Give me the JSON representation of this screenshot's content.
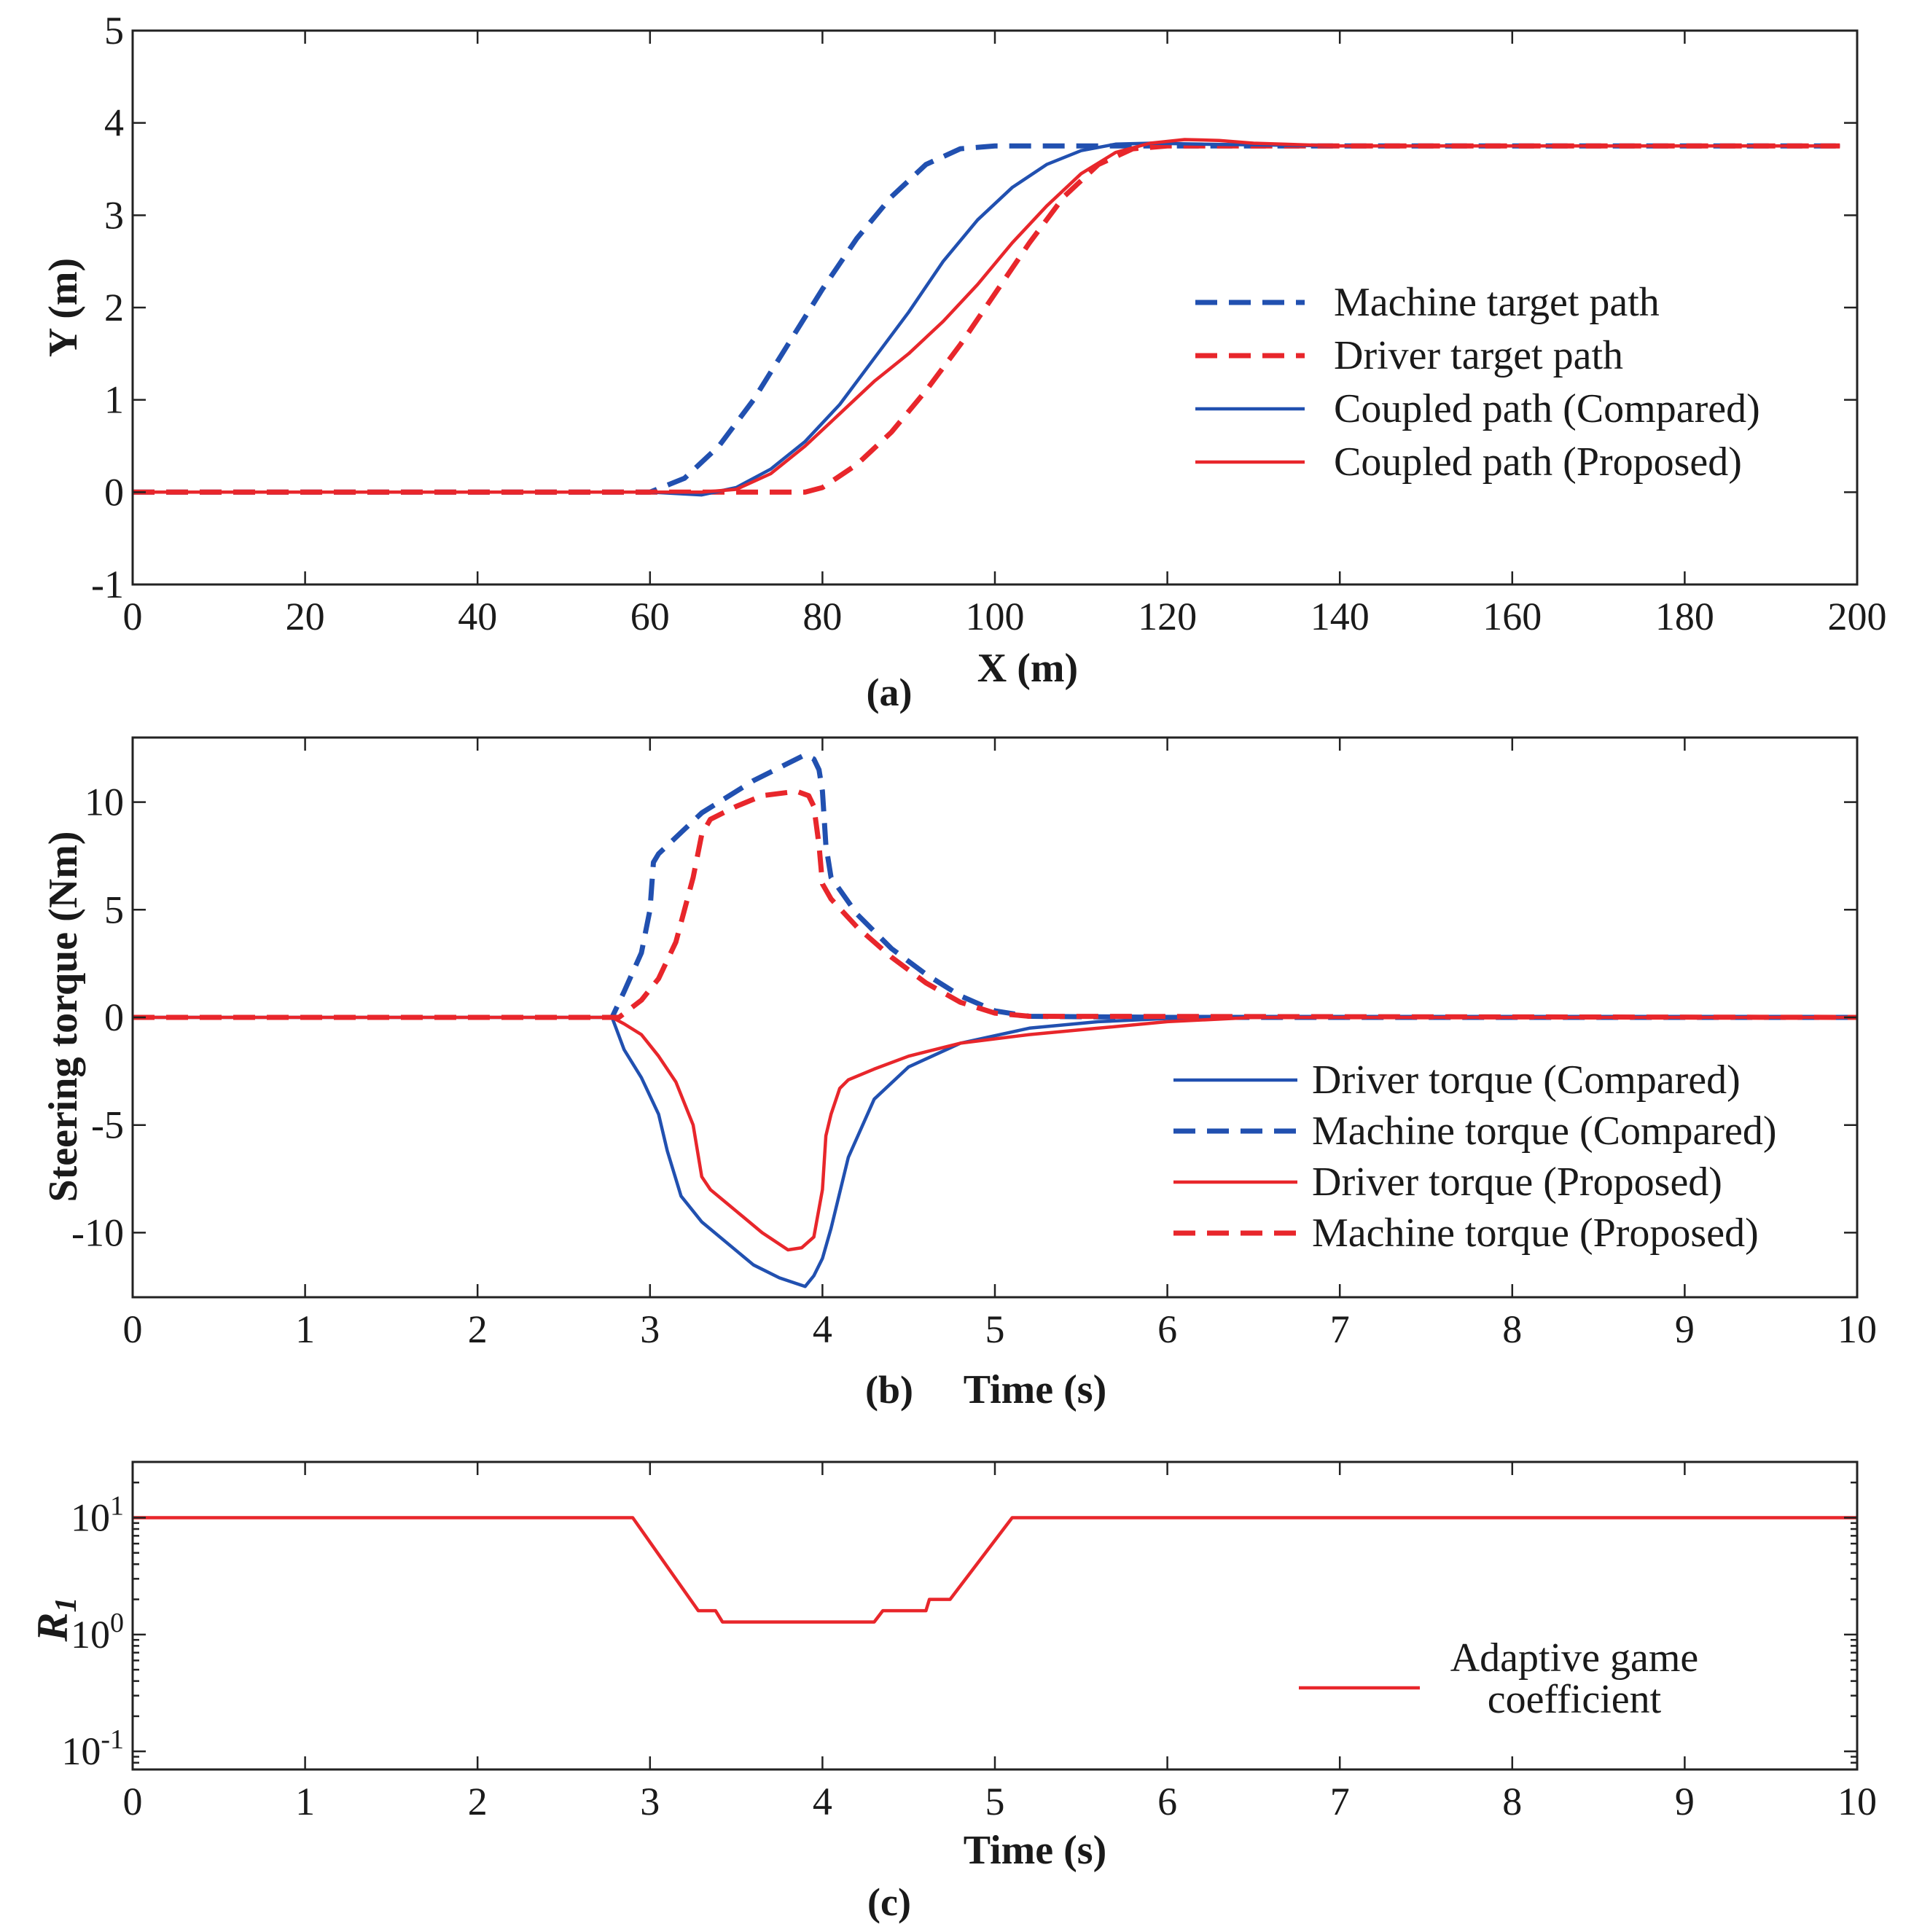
{
  "chart_data": [
    {
      "type": "line",
      "panel_label": "(a)",
      "xlabel": "X (m)",
      "ylabel": "Y (m)",
      "xlim": [
        0,
        200
      ],
      "ylim": [
        -1,
        5
      ],
      "xticks": [
        "0",
        "20",
        "40",
        "60",
        "80",
        "100",
        "120",
        "140",
        "160",
        "180",
        "200"
      ],
      "yticks": [
        "-1",
        "0",
        "1",
        "2",
        "3",
        "4",
        "5"
      ],
      "legend_position": "right",
      "series": [
        {
          "name": "Machine target path",
          "color": "#2150b0",
          "dash": true,
          "x": [
            0,
            60,
            64,
            68,
            72,
            76,
            80,
            84,
            88,
            92,
            96,
            100,
            120,
            198
          ],
          "y": [
            0,
            0,
            0.15,
            0.5,
            1.0,
            1.6,
            2.2,
            2.75,
            3.2,
            3.55,
            3.72,
            3.75,
            3.75,
            3.75
          ]
        },
        {
          "name": "Driver target path",
          "color": "#e8262b",
          "dash": true,
          "x": [
            0,
            78,
            80,
            84,
            88,
            92,
            96,
            100,
            104,
            108,
            112,
            116,
            120,
            198
          ],
          "y": [
            0,
            0,
            0.05,
            0.3,
            0.65,
            1.1,
            1.6,
            2.15,
            2.7,
            3.2,
            3.55,
            3.72,
            3.75,
            3.75
          ]
        },
        {
          "name": "Coupled path (Compared)",
          "color": "#2150b0",
          "dash": false,
          "x": [
            0,
            60,
            66,
            70,
            74,
            78,
            82,
            86,
            90,
            94,
            98,
            102,
            106,
            110,
            114,
            118,
            124,
            140,
            198
          ],
          "y": [
            0,
            0,
            -0.03,
            0.05,
            0.25,
            0.55,
            0.95,
            1.45,
            1.95,
            2.5,
            2.95,
            3.3,
            3.55,
            3.7,
            3.77,
            3.78,
            3.77,
            3.75,
            3.75
          ]
        },
        {
          "name": "Coupled path (Proposed)",
          "color": "#e8262b",
          "dash": false,
          "x": [
            0,
            66,
            70,
            74,
            78,
            82,
            86,
            90,
            94,
            98,
            102,
            106,
            110,
            114,
            118,
            122,
            126,
            130,
            140,
            198
          ],
          "y": [
            0,
            0,
            0.03,
            0.2,
            0.5,
            0.85,
            1.2,
            1.5,
            1.85,
            2.25,
            2.7,
            3.1,
            3.45,
            3.68,
            3.78,
            3.82,
            3.81,
            3.78,
            3.75,
            3.75
          ]
        }
      ]
    },
    {
      "type": "line",
      "panel_label": "(b)",
      "xlabel": "Time (s)",
      "ylabel": "Steering torque (Nm)",
      "xlim": [
        0,
        10
      ],
      "ylim": [
        -13,
        13
      ],
      "xticks": [
        "0",
        "1",
        "2",
        "3",
        "4",
        "5",
        "6",
        "7",
        "8",
        "9",
        "10"
      ],
      "yticks": [
        "-10",
        "-5",
        "0",
        "5",
        "10"
      ],
      "legend_position": "bottom-right",
      "series": [
        {
          "name": "Driver torque (Compared)",
          "color": "#2150b0",
          "dash": false,
          "x": [
            0,
            2.78,
            2.85,
            2.95,
            3.05,
            3.1,
            3.18,
            3.3,
            3.45,
            3.6,
            3.75,
            3.9,
            3.95,
            4.0,
            4.05,
            4.15,
            4.3,
            4.5,
            4.8,
            5.2,
            5.6,
            6.0,
            6.5,
            10
          ],
          "y": [
            0,
            0,
            -1.5,
            -2.8,
            -4.5,
            -6.2,
            -8.3,
            -9.5,
            -10.5,
            -11.5,
            -12.1,
            -12.5,
            -12.0,
            -11.2,
            -9.8,
            -6.5,
            -3.8,
            -2.3,
            -1.2,
            -0.5,
            -0.2,
            -0.05,
            0,
            0
          ]
        },
        {
          "name": "Machine torque (Compared)",
          "color": "#2150b0",
          "dash": true,
          "x": [
            0,
            2.78,
            2.85,
            2.95,
            3.0,
            3.02,
            3.05,
            3.3,
            3.6,
            3.8,
            3.9,
            3.95,
            3.98,
            4.0,
            4.02,
            4.05,
            4.2,
            4.4,
            4.6,
            4.8,
            5.0,
            5.2,
            6.0,
            10
          ],
          "y": [
            0,
            0,
            1.2,
            3.0,
            5.0,
            7.2,
            7.6,
            9.5,
            11.0,
            11.8,
            12.2,
            12.0,
            11.5,
            10.5,
            8.0,
            6.5,
            4.8,
            3.2,
            2.0,
            1.0,
            0.3,
            0.05,
            0,
            0
          ]
        },
        {
          "name": "Driver torque (Proposed)",
          "color": "#e8262b",
          "dash": false,
          "x": [
            0,
            2.78,
            2.85,
            2.95,
            3.05,
            3.15,
            3.25,
            3.3,
            3.35,
            3.5,
            3.65,
            3.8,
            3.88,
            3.95,
            4.0,
            4.02,
            4.05,
            4.1,
            4.15,
            4.3,
            4.5,
            4.8,
            5.2,
            5.6,
            6.0,
            6.5,
            10
          ],
          "y": [
            0,
            0,
            -0.3,
            -0.8,
            -1.8,
            -3.0,
            -5.0,
            -7.4,
            -8.0,
            -9.0,
            -10.0,
            -10.8,
            -10.7,
            -10.2,
            -8.0,
            -5.5,
            -4.5,
            -3.3,
            -2.9,
            -2.4,
            -1.8,
            -1.2,
            -0.8,
            -0.5,
            -0.2,
            0,
            0
          ]
        },
        {
          "name": "Machine torque (Proposed)",
          "color": "#e8262b",
          "dash": true,
          "x": [
            0,
            2.82,
            2.95,
            3.05,
            3.15,
            3.25,
            3.3,
            3.35,
            3.5,
            3.65,
            3.85,
            3.92,
            3.95,
            3.98,
            4.0,
            4.05,
            4.2,
            4.4,
            4.6,
            4.8,
            5.0,
            5.2,
            10
          ],
          "y": [
            0,
            0,
            0.8,
            1.8,
            3.5,
            6.5,
            8.5,
            9.2,
            9.8,
            10.3,
            10.5,
            10.3,
            9.8,
            8.0,
            6.2,
            5.5,
            4.2,
            2.8,
            1.6,
            0.7,
            0.2,
            0.05,
            0
          ]
        }
      ]
    },
    {
      "type": "line",
      "panel_label": "(c)",
      "xlabel": "Time (s)",
      "ylabel": "R1",
      "ylabel_main": "R",
      "ylabel_sub": "1",
      "yscale": "log",
      "xlim": [
        0,
        10
      ],
      "ylim": [
        0.07,
        30
      ],
      "xticks": [
        "0",
        "1",
        "2",
        "3",
        "4",
        "5",
        "6",
        "7",
        "8",
        "9",
        "10"
      ],
      "yticks": [
        {
          "base": "10",
          "exp": "-1",
          "value": 0.1
        },
        {
          "base": "10",
          "exp": "0",
          "value": 1
        },
        {
          "base": "10",
          "exp": "1",
          "value": 10
        }
      ],
      "legend_position": "bottom-right",
      "legend_lines": [
        "Adaptive game",
        "coefficient"
      ],
      "series": [
        {
          "name": "Adaptive game coefficient",
          "color": "#e8262b",
          "dash": false,
          "x": [
            0,
            2.9,
            3.28,
            3.38,
            3.42,
            4.3,
            4.35,
            4.6,
            4.62,
            4.74,
            5.1,
            10
          ],
          "y": [
            10,
            10,
            1.6,
            1.6,
            1.28,
            1.28,
            1.6,
            1.6,
            2.0,
            2.0,
            10,
            10
          ]
        }
      ]
    }
  ]
}
